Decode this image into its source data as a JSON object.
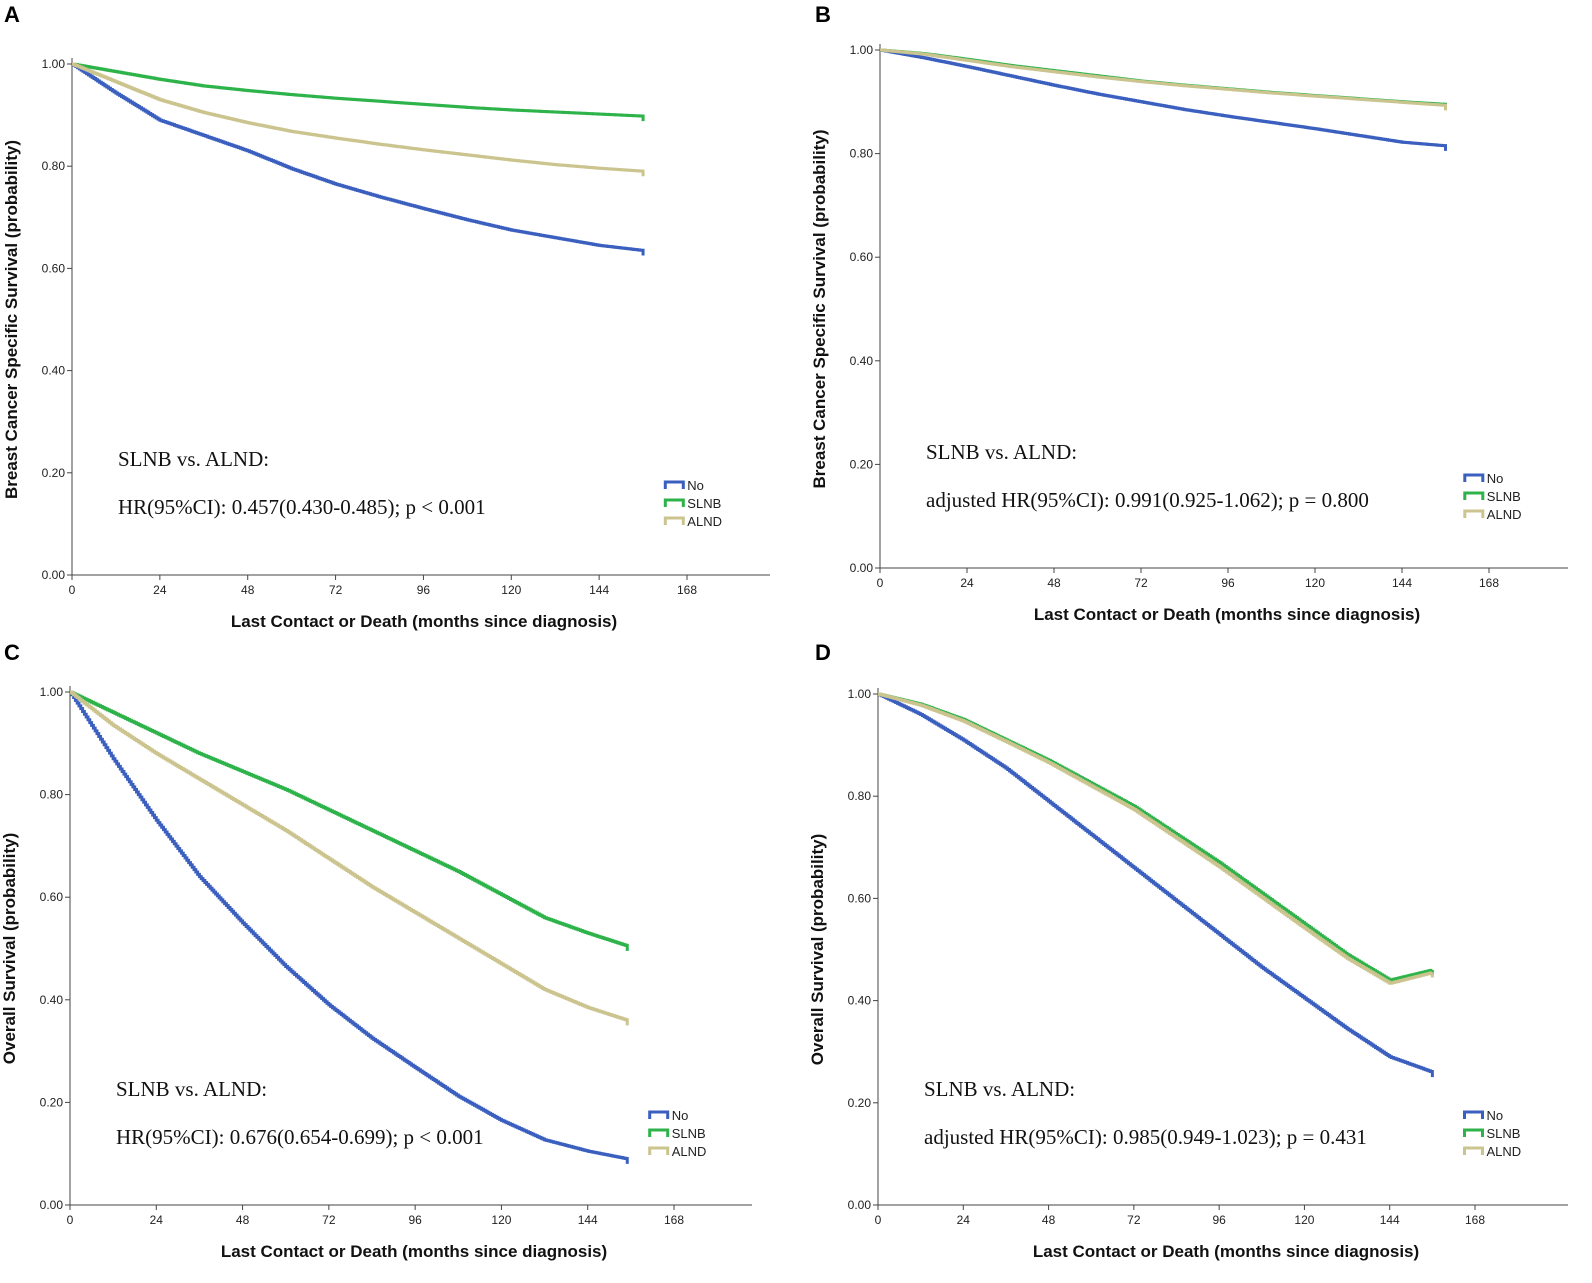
{
  "colors": {
    "No": "#3a5fbf",
    "SLNB": "#2db34a",
    "ALND": "#cbc48f",
    "axis": "#444444",
    "text": "#111111"
  },
  "chart_data": [
    {
      "panel": "A",
      "type": "line",
      "xlabel": "Last Contact or Death (months since diagnosis)",
      "ylabel": "Breast Cancer Specific Survival (probability)",
      "x_ticks": [
        "0",
        "24",
        "48",
        "72",
        "96",
        "120",
        "144",
        "168"
      ],
      "y_ticks": [
        "0.00",
        "0.20",
        "0.40",
        "0.60",
        "0.80",
        "1.00"
      ],
      "xlim": [
        0,
        192
      ],
      "ylim": [
        0,
        1.0
      ],
      "annotation": [
        "SLNB vs. ALND:",
        "HR(95%CI): 0.457(0.430-0.485); p < 0.001"
      ],
      "legend_position": "bottom-right",
      "series": [
        {
          "name": "No",
          "x": [
            0,
            12,
            24,
            36,
            48,
            60,
            72,
            84,
            96,
            108,
            120,
            132,
            144,
            156
          ],
          "y": [
            1.0,
            0.943,
            0.89,
            0.86,
            0.83,
            0.795,
            0.765,
            0.74,
            0.717,
            0.695,
            0.675,
            0.66,
            0.645,
            0.635
          ]
        },
        {
          "name": "SLNB",
          "x": [
            0,
            12,
            24,
            36,
            48,
            60,
            72,
            84,
            96,
            108,
            120,
            132,
            144,
            156
          ],
          "y": [
            1.0,
            0.985,
            0.97,
            0.957,
            0.948,
            0.94,
            0.933,
            0.927,
            0.921,
            0.915,
            0.91,
            0.906,
            0.902,
            0.898
          ]
        },
        {
          "name": "ALND",
          "x": [
            0,
            12,
            24,
            36,
            48,
            60,
            72,
            84,
            96,
            108,
            120,
            132,
            144,
            156
          ],
          "y": [
            1.0,
            0.965,
            0.93,
            0.905,
            0.885,
            0.868,
            0.855,
            0.843,
            0.832,
            0.822,
            0.812,
            0.803,
            0.796,
            0.79
          ]
        }
      ]
    },
    {
      "panel": "B",
      "type": "line",
      "xlabel": "Last Contact or Death (months since diagnosis)",
      "ylabel": "Breast Cancer Specific Survival (probability)",
      "x_ticks": [
        "0",
        "24",
        "48",
        "72",
        "96",
        "120",
        "144",
        "168"
      ],
      "y_ticks": [
        "0.00",
        "0.20",
        "0.40",
        "0.60",
        "0.80",
        "1.00"
      ],
      "xlim": [
        0,
        192
      ],
      "ylim": [
        0,
        1.0
      ],
      "annotation": [
        "SLNB vs. ALND:",
        "adjusted HR(95%CI): 0.991(0.925-1.062); p = 0.800"
      ],
      "legend_position": "bottom-right",
      "series": [
        {
          "name": "No",
          "x": [
            0,
            12,
            24,
            36,
            48,
            60,
            72,
            84,
            96,
            108,
            120,
            132,
            144,
            156
          ],
          "y": [
            1.0,
            0.985,
            0.968,
            0.95,
            0.932,
            0.915,
            0.9,
            0.885,
            0.872,
            0.86,
            0.848,
            0.835,
            0.822,
            0.815
          ]
        },
        {
          "name": "SLNB",
          "x": [
            0,
            12,
            24,
            36,
            48,
            60,
            72,
            84,
            96,
            108,
            120,
            132,
            144,
            156
          ],
          "y": [
            1.0,
            0.993,
            0.982,
            0.97,
            0.96,
            0.95,
            0.94,
            0.932,
            0.925,
            0.918,
            0.912,
            0.906,
            0.9,
            0.895
          ]
        },
        {
          "name": "ALND",
          "x": [
            0,
            12,
            24,
            36,
            48,
            60,
            72,
            84,
            96,
            108,
            120,
            132,
            144,
            156
          ],
          "y": [
            1.0,
            0.992,
            0.98,
            0.968,
            0.958,
            0.948,
            0.939,
            0.931,
            0.924,
            0.917,
            0.911,
            0.905,
            0.899,
            0.893
          ]
        }
      ]
    },
    {
      "panel": "C",
      "type": "line",
      "xlabel": "Last Contact or Death (months since diagnosis)",
      "ylabel": "Overall Survival (probability)",
      "x_ticks": [
        "0",
        "24",
        "48",
        "72",
        "96",
        "120",
        "144",
        "168"
      ],
      "y_ticks": [
        "0.00",
        "0.20",
        "0.40",
        "0.60",
        "0.80",
        "1.00"
      ],
      "xlim": [
        0,
        192
      ],
      "ylim": [
        0,
        1.0
      ],
      "annotation": [
        "SLNB vs. ALND:",
        "HR(95%CI): 0.676(0.654-0.699); p < 0.001"
      ],
      "legend_position": "bottom-right",
      "series": [
        {
          "name": "No",
          "x": [
            0,
            12,
            24,
            36,
            48,
            60,
            72,
            84,
            96,
            108,
            120,
            132,
            144,
            155
          ],
          "y": [
            1.0,
            0.87,
            0.75,
            0.64,
            0.55,
            0.465,
            0.39,
            0.325,
            0.268,
            0.212,
            0.165,
            0.127,
            0.105,
            0.09
          ]
        },
        {
          "name": "SLNB",
          "x": [
            0,
            12,
            24,
            36,
            48,
            60,
            72,
            84,
            96,
            108,
            120,
            132,
            144,
            155
          ],
          "y": [
            1.0,
            0.96,
            0.92,
            0.88,
            0.845,
            0.81,
            0.77,
            0.73,
            0.69,
            0.65,
            0.605,
            0.56,
            0.53,
            0.505
          ]
        },
        {
          "name": "ALND",
          "x": [
            0,
            12,
            24,
            36,
            48,
            60,
            72,
            84,
            96,
            108,
            120,
            132,
            144,
            155
          ],
          "y": [
            1.0,
            0.935,
            0.88,
            0.83,
            0.78,
            0.73,
            0.675,
            0.62,
            0.57,
            0.52,
            0.47,
            0.42,
            0.385,
            0.36
          ]
        }
      ]
    },
    {
      "panel": "D",
      "type": "line",
      "xlabel": "Last Contact or Death (months since diagnosis)",
      "ylabel": "Overall Survival (probability)",
      "x_ticks": [
        "0",
        "24",
        "48",
        "72",
        "96",
        "120",
        "144",
        "168"
      ],
      "y_ticks": [
        "0.00",
        "0.20",
        "0.40",
        "0.60",
        "0.80",
        "1.00"
      ],
      "xlim": [
        0,
        192
      ],
      "ylim": [
        0,
        1.0
      ],
      "annotation": [
        "SLNB vs. ALND:",
        "adjusted HR(95%CI): 0.985(0.949-1.023); p = 0.431"
      ],
      "legend_position": "bottom-right",
      "series": [
        {
          "name": "No",
          "x": [
            0,
            12,
            24,
            36,
            48,
            60,
            72,
            84,
            96,
            108,
            120,
            132,
            144,
            156
          ],
          "y": [
            1.0,
            0.96,
            0.91,
            0.855,
            0.79,
            0.725,
            0.66,
            0.595,
            0.53,
            0.465,
            0.405,
            0.345,
            0.29,
            0.26
          ]
        },
        {
          "name": "SLNB",
          "x": [
            0,
            12,
            24,
            36,
            48,
            60,
            72,
            84,
            96,
            108,
            120,
            132,
            144,
            156
          ],
          "y": [
            1.0,
            0.98,
            0.95,
            0.91,
            0.87,
            0.825,
            0.78,
            0.725,
            0.67,
            0.61,
            0.55,
            0.49,
            0.44,
            0.46
          ]
        },
        {
          "name": "ALND",
          "x": [
            0,
            12,
            24,
            36,
            48,
            60,
            72,
            84,
            96,
            108,
            120,
            132,
            144,
            156
          ],
          "y": [
            1.0,
            0.978,
            0.947,
            0.907,
            0.866,
            0.82,
            0.774,
            0.718,
            0.662,
            0.602,
            0.542,
            0.483,
            0.434,
            0.455
          ]
        }
      ]
    }
  ]
}
